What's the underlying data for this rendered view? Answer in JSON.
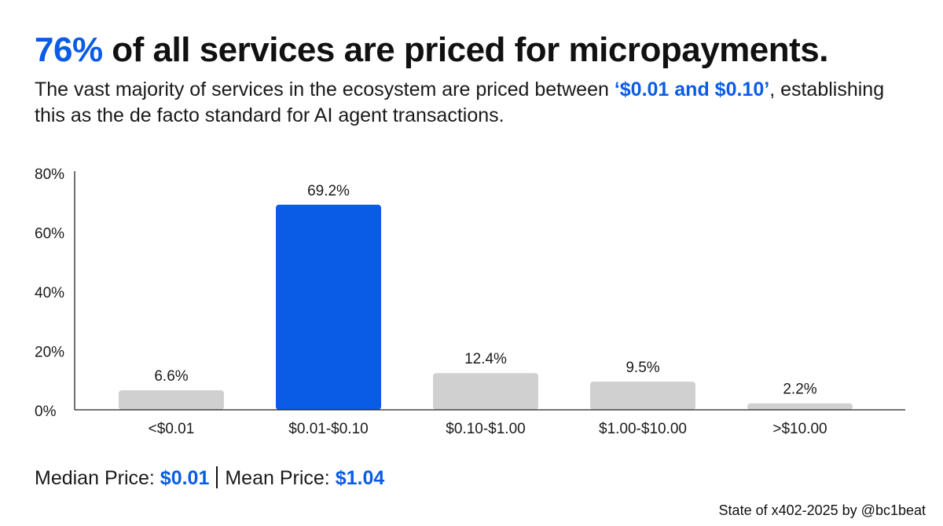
{
  "header": {
    "headline_highlight": "76%",
    "headline_rest": " of all services are priced for micropayments.",
    "subtitle_part1": "The vast majority of services in the ecosystem are priced between ",
    "subtitle_highlight": "‘$0.01 and $0.10’",
    "subtitle_part2": ", establishing this as the de facto standard for AI agent transactions."
  },
  "summary": {
    "median_label": "Median Price: ",
    "median_value": "$0.01",
    "mean_label": "Mean Price: ",
    "mean_value": "$1.04"
  },
  "credit": "State of x402-2025 by @bc1beat",
  "colors": {
    "accent": "#0a5ce6",
    "bar_default": "#d0d0d0",
    "bar_highlight": "#0a5ce6",
    "axis": "#222222"
  },
  "chart_data": {
    "type": "bar",
    "title": "",
    "xlabel": "",
    "ylabel": "",
    "categories": [
      "<$0.01",
      "$0.01-$0.10",
      "$0.10-$1.00",
      "$1.00-$10.00",
      ">$10.00"
    ],
    "values": [
      6.6,
      69.2,
      12.4,
      9.5,
      2.2
    ],
    "value_labels": [
      "6.6%",
      "69.2%",
      "12.4%",
      "9.5%",
      "2.2%"
    ],
    "highlight_index": 1,
    "ylim": [
      0,
      80
    ],
    "yticks": [
      0,
      20,
      40,
      60,
      80
    ],
    "ytick_labels": [
      "0%",
      "20%",
      "40%",
      "60%",
      "80%"
    ],
    "grid": false,
    "legend": "none"
  }
}
